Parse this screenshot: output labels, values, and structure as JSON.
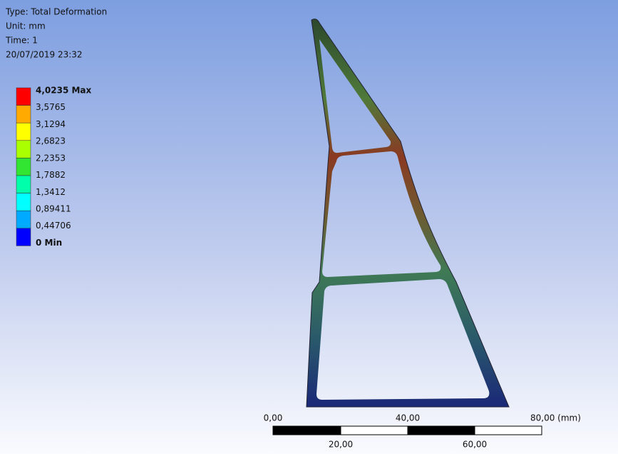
{
  "header": {
    "lines": [
      "Type: Total Deformation",
      "Unit: mm",
      "Time: 1",
      "20/07/2019 23:32"
    ]
  },
  "legend": {
    "labels": [
      "4,0235 Max",
      "3,5765",
      "3,1294",
      "2,6823",
      "2,2353",
      "1,7882",
      "1,3412",
      "0,89411",
      "0,44706",
      "0 Min"
    ],
    "colors": [
      "#ff0000",
      "#ffaa00",
      "#ffff00",
      "#aaff00",
      "#33e533",
      "#00ffaa",
      "#00ffff",
      "#00aaff",
      "#0000ff"
    ]
  },
  "scale_bar": {
    "top_labels": [
      "0,00",
      "40,00",
      "80,00 (mm)"
    ],
    "bottom_labels": [
      "20,00",
      "60,00"
    ]
  }
}
